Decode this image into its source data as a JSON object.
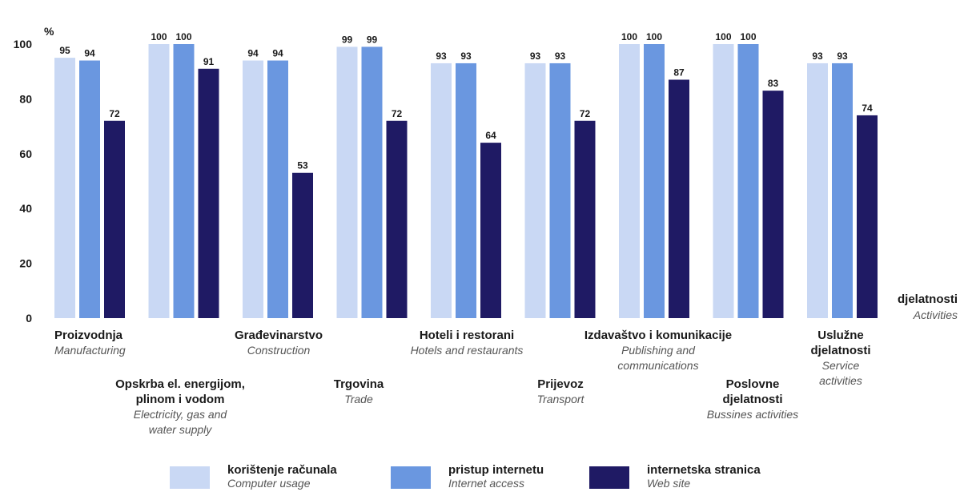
{
  "chart_data": {
    "type": "bar",
    "y_unit": "%",
    "ylim": [
      0,
      100
    ],
    "yticks": [
      0,
      20,
      40,
      60,
      80,
      100
    ],
    "grid": false,
    "legend_position": "bottom",
    "x_axis_label": {
      "main": "djelatnosti",
      "sub": "Activities"
    },
    "categories": [
      {
        "main": [
          "Proizvodnja"
        ],
        "sub": [
          "Manufacturing"
        ]
      },
      {
        "main": [
          "Opskrba el. energijom,",
          "plinom i vodom"
        ],
        "sub": [
          "Electricity, gas and",
          "water supply"
        ]
      },
      {
        "main": [
          "Građevinarstvo"
        ],
        "sub": [
          "Construction"
        ]
      },
      {
        "main": [
          "Trgovina"
        ],
        "sub": [
          "Trade"
        ]
      },
      {
        "main": [
          "Hoteli i restorani"
        ],
        "sub": [
          "Hotels and restaurants"
        ]
      },
      {
        "main": [
          "Prijevoz"
        ],
        "sub": [
          "Transport"
        ]
      },
      {
        "main": [
          "Izdavaštvo i komunikacije"
        ],
        "sub": [
          "Publishing and",
          "communications"
        ]
      },
      {
        "main": [
          "Poslovne",
          "djelatnosti"
        ],
        "sub": [
          "Bussines activities"
        ]
      },
      {
        "main": [
          "Uslužne",
          "djelatnosti"
        ],
        "sub": [
          "Service",
          "activities"
        ]
      }
    ],
    "series": [
      {
        "name": "korištenje računala",
        "name_en": "Computer usage",
        "color": "#c9d8f4",
        "values": [
          95,
          100,
          94,
          99,
          93,
          93,
          100,
          100,
          93
        ]
      },
      {
        "name": "pristup internetu",
        "name_en": "Internet access",
        "color": "#6a97e0",
        "values": [
          94,
          100,
          94,
          99,
          93,
          93,
          100,
          100,
          93
        ]
      },
      {
        "name": "internetska stranica",
        "name_en": "Web site",
        "color": "#1f1a64",
        "values": [
          72,
          91,
          53,
          72,
          64,
          72,
          87,
          83,
          74
        ]
      }
    ]
  }
}
